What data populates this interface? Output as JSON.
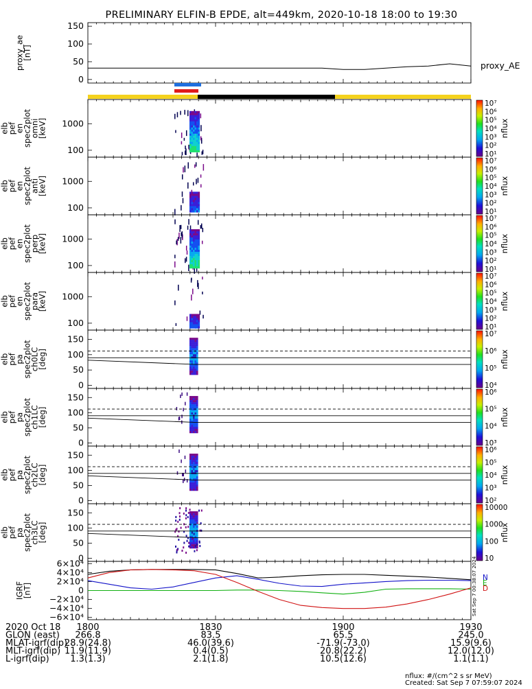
{
  "title": "PRELIMINARY ELFIN-B EPDE, alt=449km, 2020-10-18 18:00 to 19:30",
  "colors": {
    "bar_yellow": "#f4d21e",
    "bar_black": "#000000",
    "bar_blue": "#1f6fe0",
    "bar_red": "#e01b1b",
    "bx": "#1010c8",
    "by": "#10b010",
    "bz": "#d01010",
    "btot": "#000000"
  },
  "chart_data": [
    {
      "type": "line",
      "panel": "proxy_ae",
      "ylabel": [
        "proxy_ae",
        "[nT]"
      ],
      "yticks": [
        "150",
        "100",
        "50",
        "0"
      ],
      "ylim": [
        -10,
        160
      ],
      "series": [
        {
          "name": "proxy_AE",
          "x": [
            0,
            10,
            20,
            30,
            40,
            50,
            55,
            60,
            65,
            70,
            75,
            80,
            85,
            90
          ],
          "y": [
            32,
            32,
            32,
            32,
            32,
            32,
            32,
            28,
            28,
            32,
            36,
            38,
            44,
            38
          ]
        }
      ]
    },
    {
      "type": "heatmap",
      "panel": "omni",
      "ylabel": [
        "elb",
        "pef",
        "en",
        "spec2plot",
        "omni",
        "[keV]"
      ],
      "yticks": [
        "1000",
        "100"
      ],
      "yscale": "log",
      "colorbar": {
        "label": "nflux",
        "ticks": [
          "10⁷",
          "10⁶",
          "10⁵",
          "10⁴",
          "10³",
          "10²",
          "10¹"
        ]
      }
    },
    {
      "type": "heatmap",
      "panel": "anti",
      "ylabel": [
        "elb",
        "pef",
        "en",
        "spec2plot",
        "anti",
        "[keV]"
      ],
      "yticks": [
        "1000",
        "100"
      ],
      "yscale": "log",
      "colorbar": {
        "label": "nflux",
        "ticks": [
          "10⁷",
          "10⁶",
          "10⁵",
          "10⁴",
          "10³",
          "10²",
          "10¹"
        ]
      }
    },
    {
      "type": "heatmap",
      "panel": "perp",
      "ylabel": [
        "elb",
        "pef",
        "en",
        "spec2plot",
        "perp",
        "[keV]"
      ],
      "yticks": [
        "1000",
        "100"
      ],
      "yscale": "log",
      "colorbar": {
        "label": "nflux",
        "ticks": [
          "10⁷",
          "10⁶",
          "10⁵",
          "10⁴",
          "10³",
          "10²",
          "10¹"
        ]
      }
    },
    {
      "type": "heatmap",
      "panel": "para",
      "ylabel": [
        "elb",
        "pef",
        "en",
        "spec2plot",
        "para",
        "[keV]"
      ],
      "yticks": [
        "1000",
        "100"
      ],
      "yscale": "log",
      "colorbar": {
        "label": "nflux",
        "ticks": [
          "10⁷",
          "10⁶",
          "10⁵",
          "10⁴",
          "10³",
          "10²",
          "10¹"
        ]
      }
    },
    {
      "type": "heatmap",
      "panel": "ch0LC",
      "ylabel": [
        "elb",
        "pef",
        "pa",
        "spec2plot",
        "ch0LC",
        "[deg]"
      ],
      "yticks": [
        "150",
        "100",
        "50",
        "0"
      ],
      "colorbar": {
        "label": "nflux",
        "ticks": [
          "10⁷",
          "10⁶",
          "10⁵",
          "10⁴"
        ]
      }
    },
    {
      "type": "heatmap",
      "panel": "ch1LC",
      "ylabel": [
        "elb",
        "pef",
        "pa",
        "spec2plot",
        "ch1LC",
        "[deg]"
      ],
      "yticks": [
        "150",
        "100",
        "50",
        "0"
      ],
      "colorbar": {
        "label": "nflux",
        "ticks": [
          "10⁶",
          "10⁵",
          "10⁴",
          "10³"
        ]
      }
    },
    {
      "type": "heatmap",
      "panel": "ch2LC",
      "ylabel": [
        "elb",
        "pef",
        "pa",
        "spec2plot",
        "ch2LC",
        "[deg]"
      ],
      "yticks": [
        "150",
        "100",
        "50",
        "0"
      ],
      "colorbar": {
        "label": "nflux",
        "ticks": [
          "10⁶",
          "10⁵",
          "10⁴",
          "10³",
          "10²"
        ]
      }
    },
    {
      "type": "heatmap",
      "panel": "ch3LC",
      "ylabel": [
        "elb",
        "pef",
        "pa",
        "spec2plot",
        "ch3LC",
        "[deg]"
      ],
      "yticks": [
        "150",
        "100",
        "50",
        "0"
      ],
      "colorbar": {
        "label": "nflux",
        "ticks": [
          "10000",
          "1000",
          "100",
          "10"
        ]
      }
    },
    {
      "type": "line",
      "panel": "IGRF",
      "ylabel": [
        "IGRF",
        "[nT]"
      ],
      "yticks": [
        "6×10⁴",
        "4×10⁴",
        "2×10⁴",
        "0",
        "−2×10⁴",
        "−4×10⁴",
        "−6×10⁴"
      ],
      "ylim": [
        -65000,
        65000
      ],
      "legend": [
        "N",
        "E",
        "D"
      ],
      "series": [
        {
          "x": [
            0,
            5,
            10,
            15,
            20,
            25,
            30,
            35,
            40,
            45,
            50,
            55,
            60,
            65,
            70,
            75,
            80,
            85,
            90
          ],
          "y": [
            36000,
            43000,
            46000,
            47000,
            47000,
            47000,
            46000,
            38000,
            28000,
            30000,
            33000,
            35000,
            36000,
            36000,
            34000,
            32000,
            30000,
            27000,
            24000
          ]
        },
        {
          "x": [
            0,
            5,
            10,
            15,
            20,
            25,
            30,
            35,
            40,
            45,
            50,
            55,
            60,
            65,
            70,
            75,
            80,
            85,
            90
          ],
          "y": [
            22000,
            14000,
            6000,
            3000,
            8000,
            18000,
            28000,
            33000,
            25000,
            16000,
            10000,
            9000,
            14000,
            17000,
            20000,
            22000,
            23000,
            23000,
            22000
          ]
        },
        {
          "x": [
            0,
            5,
            10,
            15,
            20,
            25,
            30,
            35,
            40,
            45,
            50,
            55,
            60,
            65,
            70,
            75,
            80,
            85,
            90
          ],
          "y": [
            0,
            0,
            0,
            0,
            0,
            0,
            0,
            1000,
            1000,
            0,
            -2000,
            -5000,
            -8000,
            -4000,
            3000,
            4000,
            4000,
            4000,
            3000
          ]
        },
        {
          "x": [
            0,
            5,
            10,
            15,
            20,
            25,
            30,
            35,
            40,
            45,
            50,
            55,
            60,
            65,
            70,
            75,
            80,
            85,
            90
          ],
          "y": [
            28000,
            40000,
            46000,
            47000,
            46000,
            44000,
            36000,
            18000,
            -2000,
            -20000,
            -33000,
            -38000,
            -40000,
            -40000,
            -37000,
            -30000,
            -20000,
            -8000,
            6000
          ]
        }
      ]
    }
  ],
  "footer": {
    "rows": [
      {
        "label": "2020 Oct 18",
        "vals": [
          "1800",
          "1830",
          "1900",
          "1930"
        ]
      },
      {
        "label": "GLON (east)",
        "vals": [
          "266.8",
          "83.5",
          "65.5",
          "245.0"
        ]
      },
      {
        "label": "MLAT-igrf(dip)",
        "vals": [
          "28.9(24.8)",
          "46.0(39.6)",
          "-71.9(-73.0)",
          "15.9(9.6)"
        ]
      },
      {
        "label": "MLT-igrf(dip)",
        "vals": [
          "11.9(11.9)",
          "0.4(0.5)",
          "20.8(22.2)",
          "12.0(12.0)"
        ]
      },
      {
        "label": "L-igrf(dip)",
        "vals": [
          "1.3(1.3)",
          "2.1(1.8)",
          "10.5(12.6)",
          "1.1(1.1)"
        ]
      }
    ],
    "units": "nflux: #/(cm^2 s sr MeV)",
    "created": "Created: Sat Sep  7 07:59:07 2024",
    "side_stamp": "Sat Sep  7 00:38:07 2024"
  }
}
